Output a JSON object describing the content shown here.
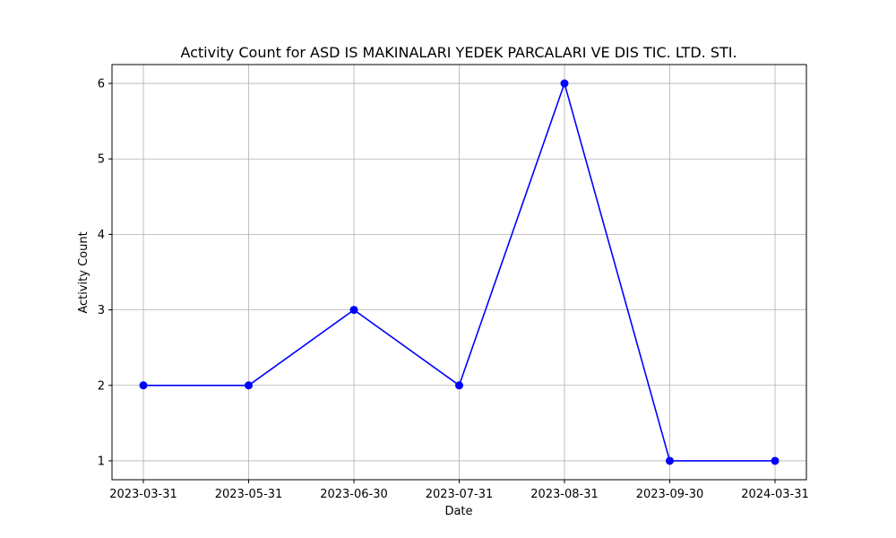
{
  "chart_data": {
    "type": "line",
    "title": "Activity Count for ASD IS MAKINALARI YEDEK PARCALARI VE DIS TIC. LTD. STI.",
    "xlabel": "Date",
    "ylabel": "Activity Count",
    "categories": [
      "2023-03-31",
      "2023-05-31",
      "2023-06-30",
      "2023-07-31",
      "2023-08-31",
      "2023-09-30",
      "2024-03-31"
    ],
    "series": [
      {
        "values": [
          2,
          2,
          3,
          2,
          6,
          1,
          1
        ],
        "color": "#0000ff"
      }
    ],
    "ylim": [
      0.75,
      6.25
    ],
    "yticks": [
      1,
      2,
      3,
      4,
      5,
      6
    ],
    "grid": true,
    "marker": "circle"
  }
}
